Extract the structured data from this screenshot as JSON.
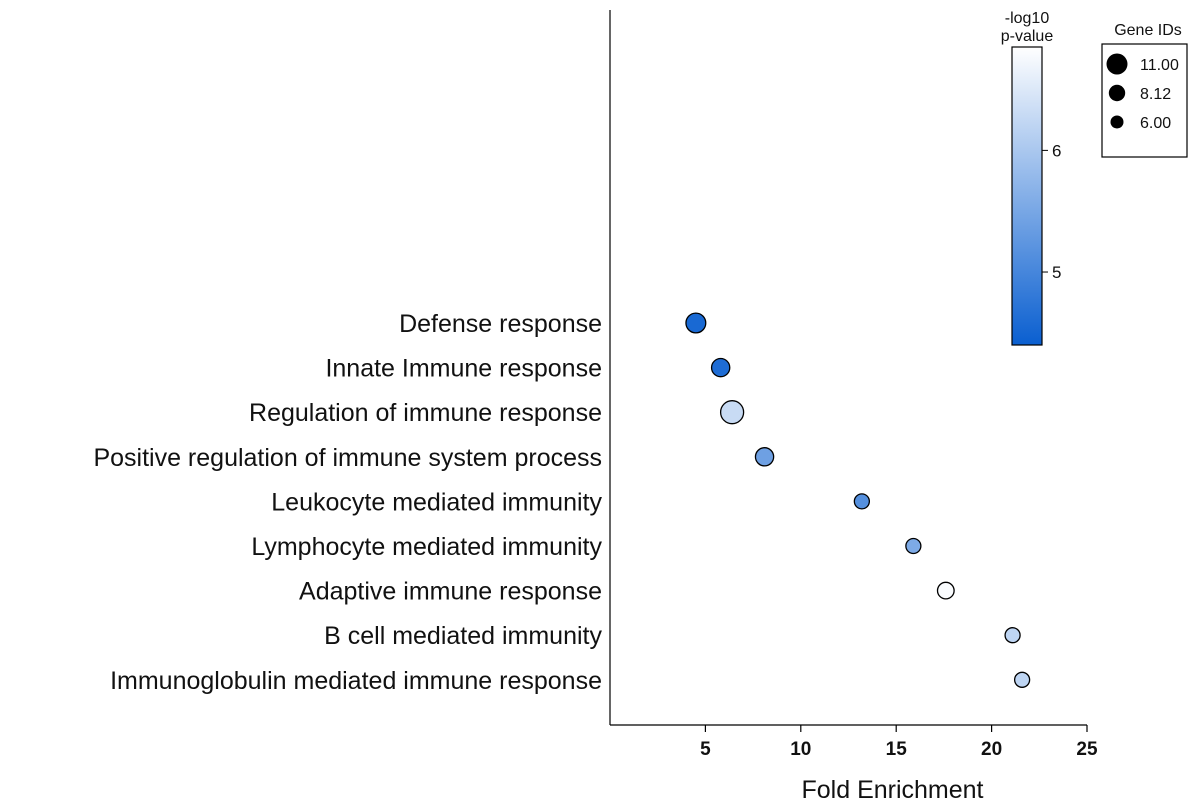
{
  "chart_data": {
    "type": "scatter",
    "title": "",
    "xlabel": "Fold Enrichment",
    "ylabel": "",
    "xlim": [
      0,
      25
    ],
    "xticks": [
      5,
      10,
      15,
      20,
      25
    ],
    "grid": false,
    "categories": [
      "Defense response",
      "Innate Immune response",
      "Regulation of immune response",
      "Positive regulation of immune system process",
      "Leukocyte mediated immunity",
      "Lymphocyte mediated immunity",
      "Adaptive immune response",
      "B cell mediated immunity",
      "Immunoglobulin mediated immune response"
    ],
    "points": [
      {
        "category": "Defense response",
        "fold_enrichment": 4.5,
        "neg_log10_p": 4.55,
        "gene_ids": 9
      },
      {
        "category": "Innate Immune response",
        "fold_enrichment": 5.8,
        "neg_log10_p": 4.6,
        "gene_ids": 8
      },
      {
        "category": "Regulation of immune response",
        "fold_enrichment": 6.4,
        "neg_log10_p": 6.3,
        "gene_ids": 11
      },
      {
        "category": "Positive regulation of immune system process",
        "fold_enrichment": 8.1,
        "neg_log10_p": 5.4,
        "gene_ids": 8
      },
      {
        "category": "Leukocyte mediated immunity",
        "fold_enrichment": 13.2,
        "neg_log10_p": 5.15,
        "gene_ids": 6
      },
      {
        "category": "Lymphocyte mediated immunity",
        "fold_enrichment": 15.9,
        "neg_log10_p": 5.55,
        "gene_ids": 6
      },
      {
        "category": "Adaptive immune response",
        "fold_enrichment": 17.6,
        "neg_log10_p": 6.8,
        "gene_ids": 7
      },
      {
        "category": "B cell mediated immunity",
        "fold_enrichment": 21.1,
        "neg_log10_p": 6.2,
        "gene_ids": 6
      },
      {
        "category": "Immunoglobulin mediated immune response",
        "fold_enrichment": 21.6,
        "neg_log10_p": 6.2,
        "gene_ids": 6
      }
    ],
    "color_scale": {
      "title_line1": "-log10",
      "title_line2": "p-value",
      "min": 4.4,
      "max": 6.85,
      "ticks": [
        5,
        6
      ],
      "low_color": "#0a5fd0",
      "high_color": "#ffffff"
    },
    "size_legend": {
      "title": "Gene IDs",
      "entries": [
        {
          "label": "11.00",
          "value": 11.0
        },
        {
          "label": "8.12",
          "value": 8.12
        },
        {
          "label": "6.00",
          "value": 6.0
        }
      ]
    }
  }
}
